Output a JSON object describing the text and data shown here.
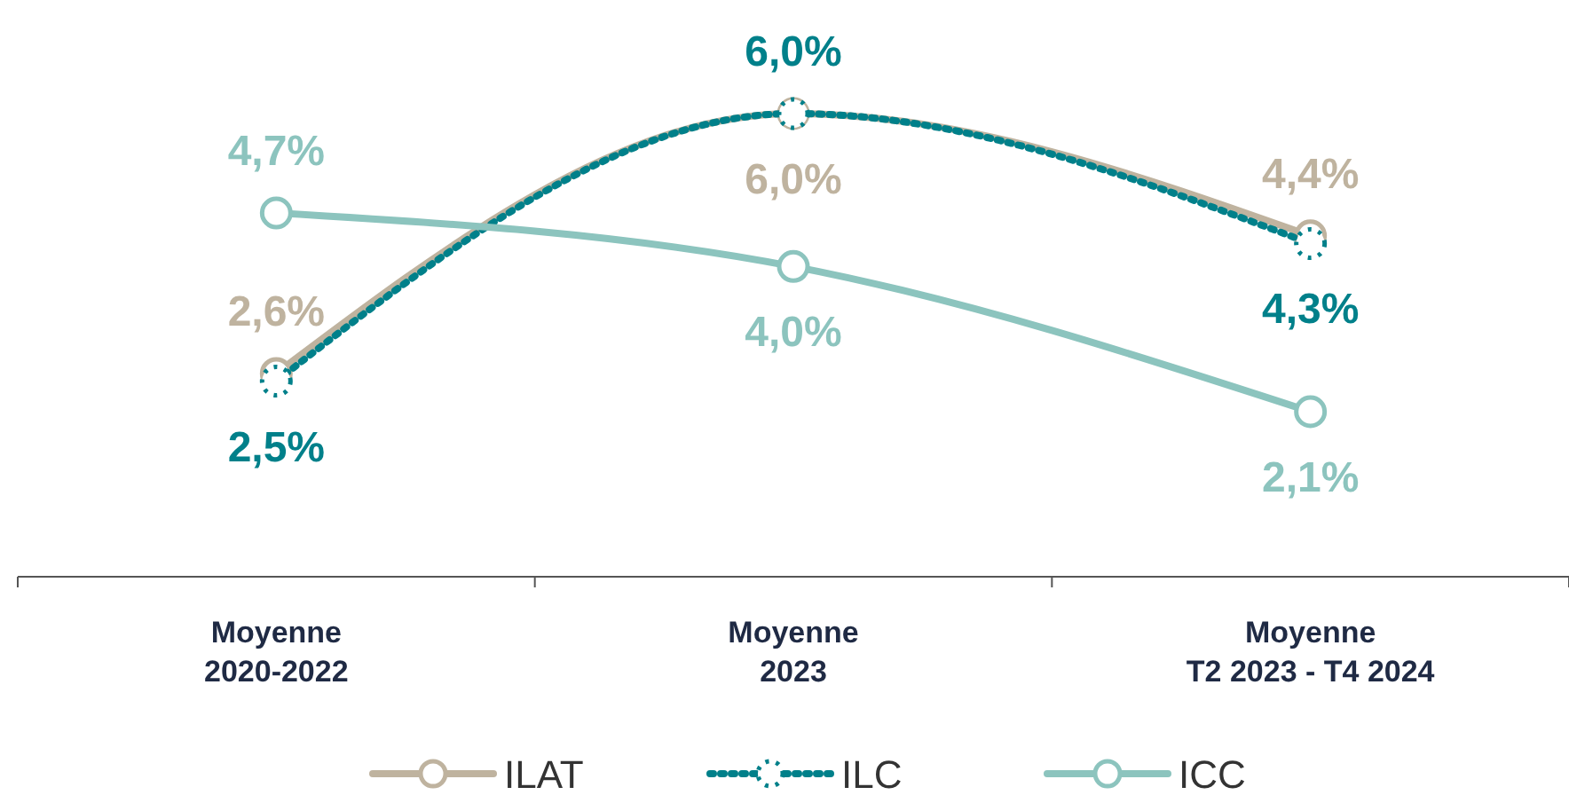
{
  "chart_data": {
    "type": "line",
    "categories": [
      "Moyenne\n2020-2022",
      "Moyenne\n2023",
      "Moyenne\nT2 2023 - T4 2024"
    ],
    "series": [
      {
        "name": "ILAT",
        "color": "#bfb39f",
        "values": [
          2.6,
          6.0,
          4.4
        ],
        "value_labels": [
          "2,6%",
          "6,0%",
          "4,4%"
        ],
        "line_style": "solid"
      },
      {
        "name": "ILC",
        "color": "#00808a",
        "values": [
          2.5,
          6.0,
          4.3
        ],
        "value_labels": [
          "2,5%",
          "6,0%",
          "4,3%"
        ],
        "line_style": "dotted"
      },
      {
        "name": "ICC",
        "color": "#8cc4be",
        "values": [
          4.7,
          4.0,
          2.1
        ],
        "value_labels": [
          "4,7%",
          "4,0%",
          "2,1%"
        ],
        "line_style": "solid"
      }
    ],
    "marker": "circle",
    "legend": "bottom"
  }
}
